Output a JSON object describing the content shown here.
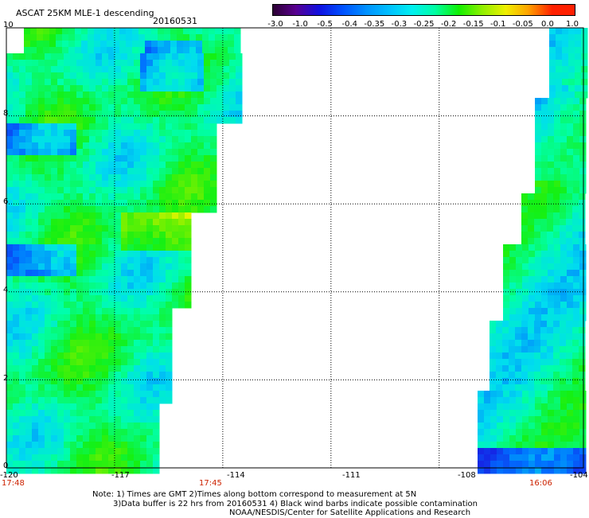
{
  "title": "ASCAT 25KM MLE-1 descending",
  "date": "20160531",
  "colorbar": {
    "labels": [
      "-3.0",
      "-1.0",
      "-0.5",
      "-0.4",
      "-0.35",
      "-0.3",
      "-0.25",
      "-0.2",
      "-0.15",
      "-0.1",
      "-0.05",
      "0.0",
      "1.0"
    ],
    "colors": [
      "#2a0030",
      "#5a0090",
      "#1010e0",
      "#0050ff",
      "#0090ff",
      "#00c0ff",
      "#00f0f0",
      "#00ffa0",
      "#10f000",
      "#90f000",
      "#f0f000",
      "#ffa000",
      "#ff2000"
    ]
  },
  "x_axis": {
    "ticks": [
      "-120",
      "-117",
      "-114",
      "-111",
      "-108",
      "-104"
    ],
    "times": [
      "17:48",
      "17:45",
      "16:06"
    ]
  },
  "y_axis": {
    "ticks": [
      "0",
      "2",
      "4",
      "6",
      "8",
      "10"
    ]
  },
  "notes": [
    "Note: 1) Times are GMT 2)Times along bottom correspond to measurement at 5N",
    "3)Data buffer is 22 hrs from 20160531 4) Black wind barbs indicate possible contamination",
    "NOAA/NESDIS/Center for Satellite Applications and Research"
  ],
  "colors": {
    "background": "#ffffff",
    "time_text": "#cc2200",
    "grid": "#000000"
  }
}
